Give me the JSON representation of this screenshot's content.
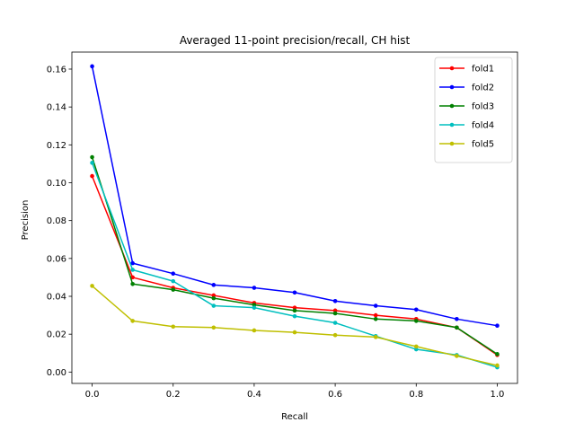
{
  "chart_data": {
    "type": "line",
    "title": "Averaged 11-point precision/recall, CH hist",
    "xlabel": "Recall",
    "ylabel": "Precision",
    "xlim": [
      -0.05,
      1.05
    ],
    "ylim": [
      -0.006,
      0.169
    ],
    "xticks": [
      "0.0",
      "0.2",
      "0.4",
      "0.6",
      "0.8",
      "1.0"
    ],
    "yticks": [
      "0.00",
      "0.02",
      "0.04",
      "0.06",
      "0.08",
      "0.10",
      "0.12",
      "0.14",
      "0.16"
    ],
    "grid": false,
    "legend_position": "top-right",
    "x": [
      0.0,
      0.1,
      0.2,
      0.3,
      0.4,
      0.5,
      0.6,
      0.7,
      0.8,
      0.9,
      1.0
    ],
    "series": [
      {
        "name": "fold1",
        "color": "#ff0000",
        "values": [
          0.1035,
          0.05,
          0.0445,
          0.0405,
          0.0365,
          0.034,
          0.0325,
          0.03,
          0.028,
          0.0235,
          0.009
        ]
      },
      {
        "name": "fold2",
        "color": "#0000ff",
        "values": [
          0.1615,
          0.0575,
          0.052,
          0.046,
          0.0445,
          0.042,
          0.0375,
          0.035,
          0.033,
          0.028,
          0.0245
        ]
      },
      {
        "name": "fold3",
        "color": "#008000",
        "values": [
          0.1135,
          0.0465,
          0.0435,
          0.039,
          0.0355,
          0.0325,
          0.031,
          0.028,
          0.027,
          0.0235,
          0.0095
        ]
      },
      {
        "name": "fold4",
        "color": "#00bfbf",
        "values": [
          0.1105,
          0.054,
          0.048,
          0.035,
          0.034,
          0.0295,
          0.026,
          0.019,
          0.012,
          0.009,
          0.0025
        ]
      },
      {
        "name": "fold5",
        "color": "#bfbf00",
        "values": [
          0.0455,
          0.027,
          0.024,
          0.0235,
          0.022,
          0.021,
          0.0195,
          0.0185,
          0.0135,
          0.0085,
          0.0035
        ]
      }
    ]
  }
}
